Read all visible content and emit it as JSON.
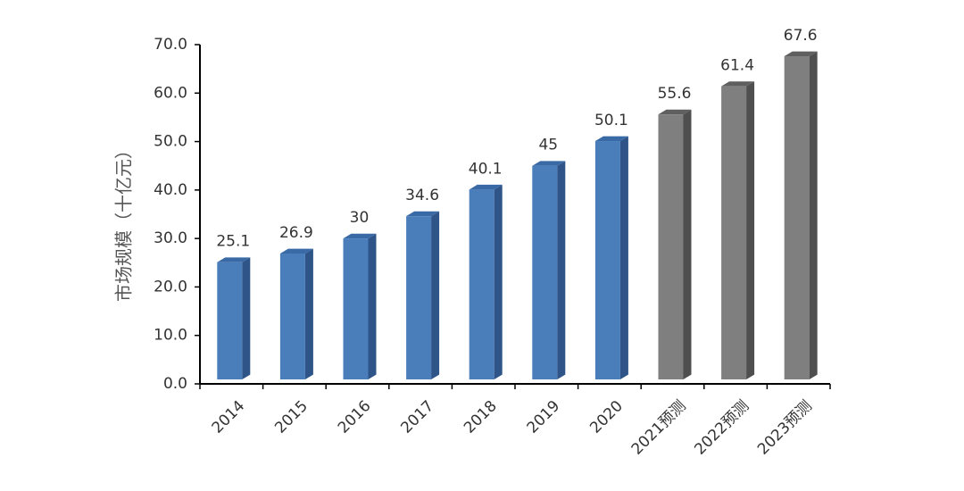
{
  "chart_data": {
    "type": "bar",
    "categories": [
      "2014",
      "2015",
      "2016",
      "2017",
      "2018",
      "2019",
      "2020",
      "2021预测",
      "2022预测",
      "2023预测"
    ],
    "values": [
      25.1,
      26.9,
      30,
      34.6,
      40.1,
      45,
      50.1,
      55.6,
      61.4,
      67.6
    ],
    "value_labels": [
      "25.1",
      "26.9",
      "30",
      "34.6",
      "40.1",
      "45",
      "50.1",
      "55.6",
      "61.4",
      "67.6"
    ],
    "forecast": [
      false,
      false,
      false,
      false,
      false,
      false,
      false,
      true,
      true,
      true
    ],
    "title": "",
    "xlabel": "",
    "ylabel": "市场规模（十亿元）",
    "ylim": [
      0,
      70
    ],
    "yticks": [
      "0.0",
      "10.0",
      "20.0",
      "30.0",
      "40.0",
      "50.0",
      "60.0",
      "70.0"
    ],
    "grid": false,
    "legend": "none",
    "colors": {
      "actual_front": "#4a7ebb",
      "actual_side": "#2e5488",
      "actual_top": "#3a6aa6",
      "forecast_front": "#7f7f7f",
      "forecast_side": "#4f4f4f",
      "forecast_top": "#5f5f5f",
      "axis": "#000000"
    }
  }
}
